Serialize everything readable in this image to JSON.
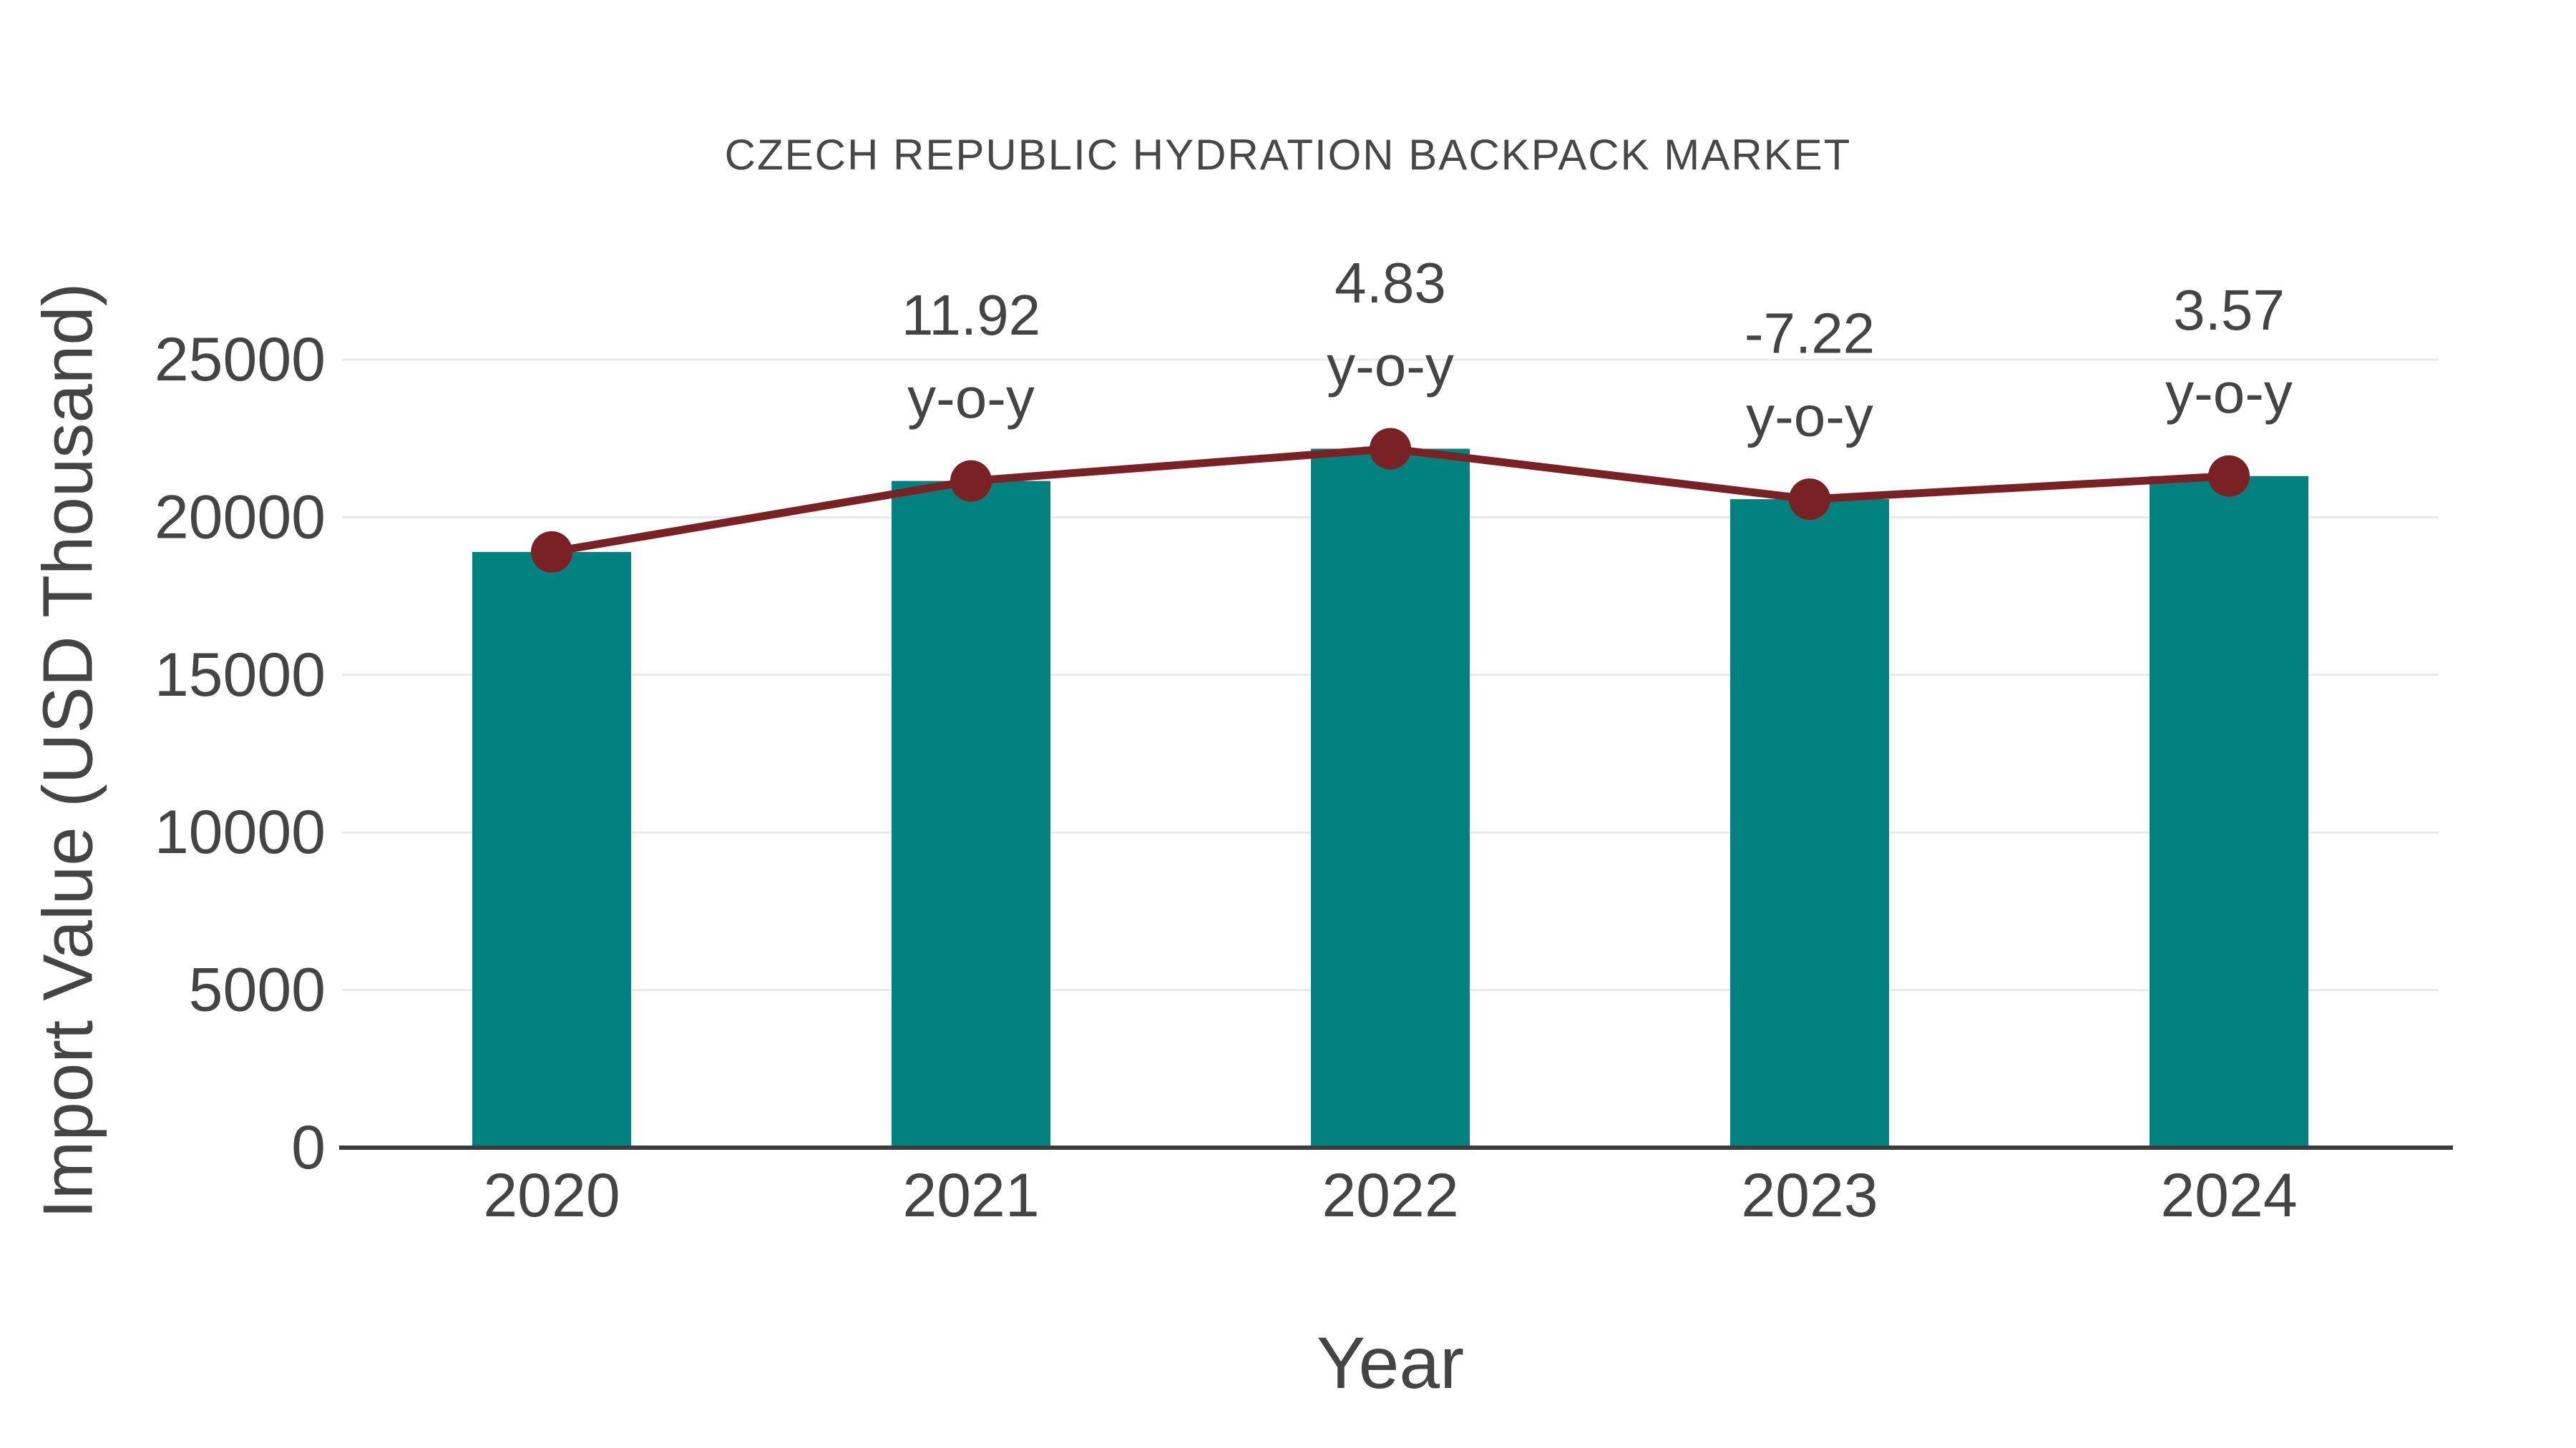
{
  "chart_data": {
    "type": "bar",
    "title": "CZECH REPUBLIC HYDRATION BACKPACK MARKET",
    "xlabel": "Year",
    "ylabel": "Import Value (USD Thousand)",
    "categories": [
      "2020",
      "2021",
      "2022",
      "2023",
      "2024"
    ],
    "series": [
      {
        "name": "Import Value (USD Thousand)",
        "type": "bar",
        "values": [
          18900,
          21153,
          22175,
          20574,
          21308
        ]
      },
      {
        "name": "y-o-y change line",
        "type": "line",
        "values": [
          18900,
          21153,
          22175,
          20574,
          21308
        ]
      }
    ],
    "annotations": [
      {
        "category": "2021",
        "value": "11.92",
        "unit": "y-o-y"
      },
      {
        "category": "2022",
        "value": "4.83",
        "unit": "y-o-y"
      },
      {
        "category": "2023",
        "value": "-7.22",
        "unit": "y-o-y"
      },
      {
        "category": "2024",
        "value": "3.57",
        "unit": "y-o-y"
      }
    ],
    "yticks": [
      0,
      5000,
      10000,
      15000,
      20000,
      25000
    ],
    "ylim": [
      0,
      25000
    ],
    "grid": "horizontal-light-gray",
    "legend": "none"
  },
  "colors": {
    "bar": "#028181",
    "line": "#7A2124",
    "marker": "#7A2124",
    "text": "#444444",
    "grid": "#E9E9E9",
    "axis": "#3C3C3C",
    "background": "#FFFFFF"
  }
}
